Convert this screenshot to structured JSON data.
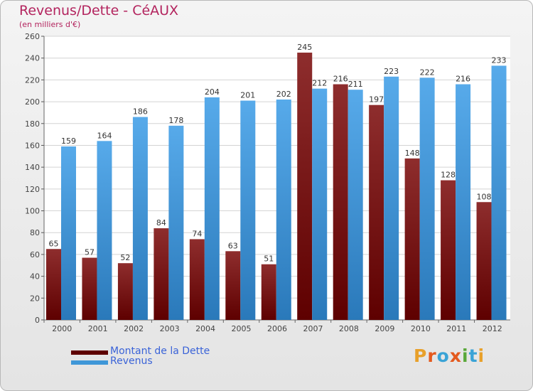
{
  "title": "Revenus/Dette - CéAUX",
  "subtitle": "(en milliers d'€)",
  "logo": {
    "text": "Proxiti",
    "colors": [
      "#e8a02a",
      "#e45a1e",
      "#3aa3d6",
      "#e45a1e",
      "#5aa83a",
      "#3aa3d6",
      "#e8a02a"
    ]
  },
  "colors": {
    "dette": "#8b1a1a",
    "revenus": "#3f97d8",
    "title": "#b3245e",
    "legend_text": "#3a63d8",
    "grid": "#d4d4d4"
  },
  "legend": [
    {
      "label": "Montant de la Dette",
      "color": "#5e0000"
    },
    {
      "label": "Revenus",
      "color": "#3f97d8"
    }
  ],
  "chart_data": {
    "type": "bar",
    "title": "Revenus/Dette - CéAUX",
    "subtitle": "(en milliers d'€)",
    "categories": [
      "2000",
      "2001",
      "2002",
      "2003",
      "2004",
      "2005",
      "2006",
      "2007",
      "2008",
      "2009",
      "2010",
      "2011",
      "2012"
    ],
    "series": [
      {
        "name": "Montant de la Dette",
        "values": [
          65,
          57,
          52,
          84,
          74,
          63,
          51,
          245,
          216,
          197,
          148,
          128,
          108
        ]
      },
      {
        "name": "Revenus",
        "values": [
          159,
          164,
          186,
          178,
          204,
          201,
          202,
          212,
          211,
          223,
          222,
          216,
          233
        ]
      }
    ],
    "yticks": [
      0,
      20,
      40,
      60,
      80,
      100,
      120,
      140,
      160,
      180,
      200,
      220,
      240,
      260
    ],
    "ylim": [
      0,
      260
    ],
    "grid": true,
    "legend_position": "bottom-left"
  }
}
